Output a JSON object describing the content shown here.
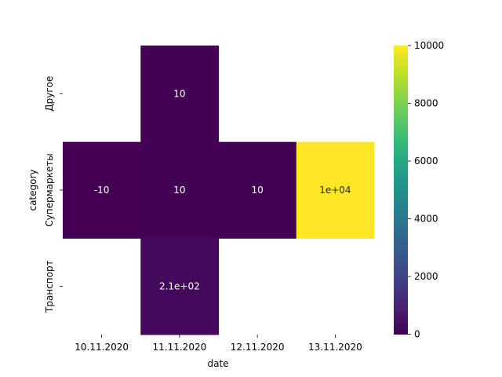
{
  "chart_data": {
    "type": "heatmap",
    "xlabel": "date",
    "ylabel": "category",
    "x_categories": [
      "10.11.2020",
      "11.11.2020",
      "12.11.2020",
      "13.11.2020"
    ],
    "y_categories": [
      "Другое",
      "Супермаркеты",
      "Транспорт"
    ],
    "cells": [
      {
        "x": "11.11.2020",
        "y": "Другое",
        "value": 10,
        "label": "10"
      },
      {
        "x": "10.11.2020",
        "y": "Супермаркеты",
        "value": -10,
        "label": "-10"
      },
      {
        "x": "11.11.2020",
        "y": "Супермаркеты",
        "value": 10,
        "label": "10"
      },
      {
        "x": "12.11.2020",
        "y": "Супермаркеты",
        "value": 10,
        "label": "10"
      },
      {
        "x": "13.11.2020",
        "y": "Супермаркеты",
        "value": 10000,
        "label": "1e+04"
      },
      {
        "x": "11.11.2020",
        "y": "Транспорт",
        "value": 210,
        "label": "2.1e+02"
      }
    ],
    "colormap": "viridis",
    "colorbar": {
      "range": [
        -10,
        10000
      ],
      "ticks": [
        0,
        2000,
        4000,
        6000,
        8000,
        10000
      ],
      "tick_labels": [
        "0",
        "2000",
        "4000",
        "6000",
        "8000",
        "10000"
      ]
    },
    "grid": false
  }
}
